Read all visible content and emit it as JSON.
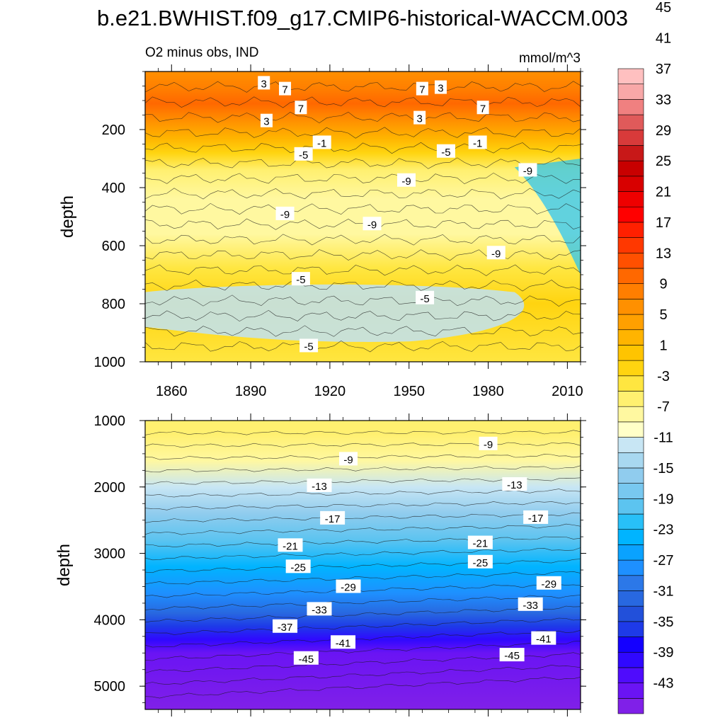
{
  "chart_data": [
    {
      "type": "heatmap",
      "title": "b.e21.BWHIST.f09_g17.CMIP6-historical-WACCM.003",
      "subtitle_left": "O2 minus obs, IND",
      "subtitle_right": "mmol/m^3",
      "xlabel": "",
      "ylabel": "depth",
      "xlim": [
        1850,
        2015
      ],
      "ylim": [
        1000,
        0
      ],
      "x_ticks": [
        "1860",
        "1890",
        "1920",
        "1950",
        "1980",
        "2010"
      ],
      "y_ticks": [
        "200",
        "400",
        "600",
        "800",
        "1000"
      ],
      "depth_profile": [
        {
          "depth": 0,
          "value": 5
        },
        {
          "depth": 60,
          "value": 7
        },
        {
          "depth": 110,
          "value": 9
        },
        {
          "depth": 170,
          "value": 5
        },
        {
          "depth": 230,
          "value": 1
        },
        {
          "depth": 280,
          "value": -3
        },
        {
          "depth": 340,
          "value": -7
        },
        {
          "depth": 440,
          "value": -9
        },
        {
          "depth": 560,
          "value": -9
        },
        {
          "depth": 680,
          "value": -5
        },
        {
          "depth": 800,
          "value": -3
        },
        {
          "depth": 1000,
          "value": -5
        }
      ],
      "contour_labels": [
        {
          "x": 1895,
          "depth": 40,
          "text": "3"
        },
        {
          "x": 1903,
          "depth": 60,
          "text": "7"
        },
        {
          "x": 1955,
          "depth": 60,
          "text": "7"
        },
        {
          "x": 1962,
          "depth": 55,
          "text": "3"
        },
        {
          "x": 1909,
          "depth": 125,
          "text": "7"
        },
        {
          "x": 1978,
          "depth": 125,
          "text": "7"
        },
        {
          "x": 1896,
          "depth": 170,
          "text": "3"
        },
        {
          "x": 1954,
          "depth": 160,
          "text": "3"
        },
        {
          "x": 1917,
          "depth": 245,
          "text": "-1"
        },
        {
          "x": 1976,
          "depth": 245,
          "text": "-1"
        },
        {
          "x": 1910,
          "depth": 285,
          "text": "-5"
        },
        {
          "x": 1964,
          "depth": 275,
          "text": "-5"
        },
        {
          "x": 1949,
          "depth": 375,
          "text": "-9"
        },
        {
          "x": 1995,
          "depth": 340,
          "text": "-9"
        },
        {
          "x": 1903,
          "depth": 490,
          "text": "-9"
        },
        {
          "x": 1936,
          "depth": 525,
          "text": "-9"
        },
        {
          "x": 1983,
          "depth": 625,
          "text": "-9"
        },
        {
          "x": 1909,
          "depth": 715,
          "text": "-5"
        },
        {
          "x": 1956,
          "depth": 780,
          "text": "-5"
        },
        {
          "x": 1912,
          "depth": 945,
          "text": "-5"
        }
      ]
    },
    {
      "type": "heatmap",
      "xlabel": "",
      "ylabel": "depth",
      "xlim": [
        1850,
        2015
      ],
      "ylim": [
        5350,
        1000
      ],
      "y_ticks": [
        "1000",
        "2000",
        "3000",
        "4000",
        "5000"
      ],
      "depth_profile": [
        {
          "depth": 1000,
          "value": -7
        },
        {
          "depth": 1200,
          "value": -7
        },
        {
          "depth": 1600,
          "value": -9
        },
        {
          "depth": 2000,
          "value": -13
        },
        {
          "depth": 2400,
          "value": -17
        },
        {
          "depth": 2800,
          "value": -21
        },
        {
          "depth": 3200,
          "value": -25
        },
        {
          "depth": 3600,
          "value": -29
        },
        {
          "depth": 3900,
          "value": -33
        },
        {
          "depth": 4100,
          "value": -37
        },
        {
          "depth": 4300,
          "value": -41
        },
        {
          "depth": 4500,
          "value": -45
        },
        {
          "depth": 5350,
          "value": -47
        }
      ],
      "contour_labels": [
        {
          "x": 1927,
          "depth": 1580,
          "text": "-9"
        },
        {
          "x": 1980,
          "depth": 1350,
          "text": "-9"
        },
        {
          "x": 1916,
          "depth": 1980,
          "text": "-13"
        },
        {
          "x": 1990,
          "depth": 1960,
          "text": "-13"
        },
        {
          "x": 1921,
          "depth": 2470,
          "text": "-17"
        },
        {
          "x": 1998,
          "depth": 2460,
          "text": "-17"
        },
        {
          "x": 1905,
          "depth": 2880,
          "text": "-21"
        },
        {
          "x": 1977,
          "depth": 2840,
          "text": "-21"
        },
        {
          "x": 1908,
          "depth": 3200,
          "text": "-25"
        },
        {
          "x": 1977,
          "depth": 3130,
          "text": "-25"
        },
        {
          "x": 1927,
          "depth": 3500,
          "text": "-29"
        },
        {
          "x": 2003,
          "depth": 3450,
          "text": "-29"
        },
        {
          "x": 1916,
          "depth": 3840,
          "text": "-33"
        },
        {
          "x": 1996,
          "depth": 3770,
          "text": "-33"
        },
        {
          "x": 1903,
          "depth": 4100,
          "text": "-37"
        },
        {
          "x": 1925,
          "depth": 4340,
          "text": "-41"
        },
        {
          "x": 2001,
          "depth": 4280,
          "text": "-41"
        },
        {
          "x": 1911,
          "depth": 4580,
          "text": "-45"
        },
        {
          "x": 1989,
          "depth": 4530,
          "text": "-45"
        }
      ]
    }
  ],
  "colorbar": {
    "labels": [
      "45",
      "41",
      "37",
      "33",
      "29",
      "25",
      "21",
      "17",
      "13",
      "9",
      "5",
      "1",
      "-3",
      "-7",
      "-11",
      "-15",
      "-19",
      "-23",
      "-27",
      "-31",
      "-35",
      "-39",
      "-43"
    ],
    "level_min": -47,
    "level_step": 2,
    "colors": [
      "#8020e8",
      "#6a14f4",
      "#4f0cfc",
      "#3008ff",
      "#1400ff",
      "#1e3ae8",
      "#2250da",
      "#2868e0",
      "#2c78e8",
      "#1e90ff",
      "#0aa2ff",
      "#00b4ff",
      "#28c0f8",
      "#5cc4f0",
      "#78c8f0",
      "#90ccee",
      "#a8d8f0",
      "#c8e6f4",
      "#ffffc8",
      "#fff8a0",
      "#fff070",
      "#ffe640",
      "#ffd410",
      "#ffc400",
      "#ffb400",
      "#ffa000",
      "#ff9000",
      "#ff7e00",
      "#ff6800",
      "#ff5000",
      "#ff3800",
      "#ff2000",
      "#ff0000",
      "#ee0000",
      "#d80000",
      "#c80000",
      "#c81818",
      "#d83a3a",
      "#e05a5a",
      "#f08080",
      "#f8a8a8",
      "#ffc0c0"
    ]
  }
}
